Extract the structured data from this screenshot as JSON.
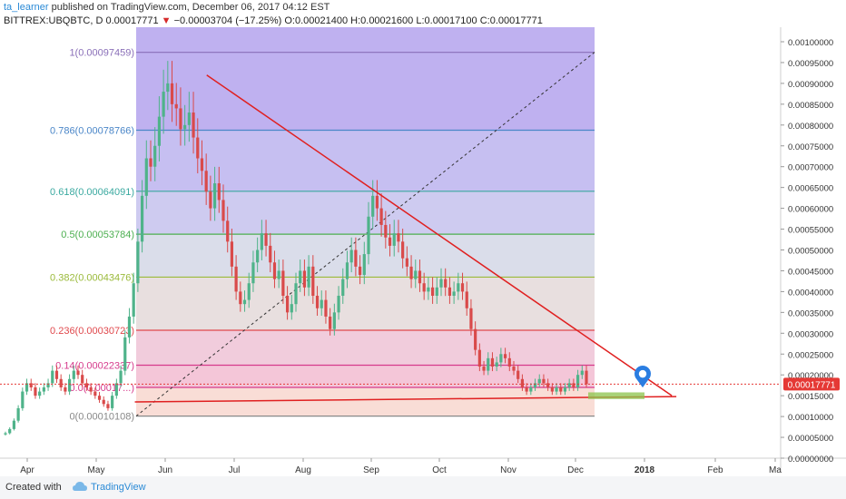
{
  "header": {
    "author": "ta_learner",
    "published_text": "published on TradingView.com, December 06, 2017 04:12 EST",
    "symbol": "BITTREX:UBQBTC, D",
    "last": "0.00017771",
    "arrow": "▼",
    "change": "−0.00003704 (−17.25%)",
    "o_label": "O:",
    "o_value": "0.00021400",
    "h_label": "H:",
    "h_value": "0.00021600",
    "l_label": "L:",
    "l_value": "0.00017100",
    "c_label": "C:",
    "c_value": "0.00017771"
  },
  "footer": {
    "created_with": "Created with",
    "brand": "TradingView"
  },
  "colors": {
    "up": "#4fb38a",
    "down": "#d94a4a",
    "trendline": "#e02020",
    "price_tag": "#e53935",
    "marker": "#2a7de1",
    "green_box": "#8bc34a"
  },
  "chart_data": {
    "type": "candlestick",
    "symbol": "BITTREX:UBQBTC",
    "interval": "D",
    "x_ticks": [
      "Apr",
      "May",
      "Jun",
      "Jul",
      "Aug",
      "Sep",
      "Oct",
      "Nov",
      "Dec",
      "2018",
      "Feb",
      "Ma"
    ],
    "y_ticks": [
      "0.00100000",
      "0.00095000",
      "0.00090000",
      "0.00085000",
      "0.00080000",
      "0.00075000",
      "0.00070000",
      "0.00065000",
      "0.00060000",
      "0.00055000",
      "0.00050000",
      "0.00045000",
      "0.00040000",
      "0.00035000",
      "0.00030000",
      "0.00025000",
      "0.00020000",
      "0.00015000",
      "0.00010000",
      "0.00005000",
      "0.00000000"
    ],
    "ylim": [
      0,
      0.00102
    ],
    "current_price_label": "0.00017771",
    "current_price": 0.00017771,
    "fibonacci": [
      {
        "label": "1(0.00097459)",
        "level": 1,
        "price": 0.00097459,
        "color": "#8a6fb8"
      },
      {
        "label": "0.786(0.00078766)",
        "level": 0.786,
        "price": 0.00078766,
        "color": "#4a86c8"
      },
      {
        "label": "0.618(0.00064091)",
        "level": 0.618,
        "price": 0.00064091,
        "color": "#3aa9a0"
      },
      {
        "label": "0.5(0.00053784)",
        "level": 0.5,
        "price": 0.00053784,
        "color": "#4caf50"
      },
      {
        "label": "0.382(0.00043476)",
        "level": 0.382,
        "price": 0.00043476,
        "color": "#9aba3a"
      },
      {
        "label": "0.236(0.00030723)",
        "level": 0.236,
        "price": 0.00030723,
        "color": "#e0484c"
      },
      {
        "label": "0.14(0.00022337)",
        "level": 0.14,
        "price": 0.00022337,
        "color": "#d63a8c"
      },
      {
        "label": "0.0(0.00017...)",
        "level": 0.08,
        "price": 0.00017,
        "color": "#d63a8c"
      },
      {
        "label": "0(0.00010108)",
        "level": 0,
        "price": 0.00010108,
        "color": "#888888"
      }
    ],
    "close_series": [
      6e-05,
      7e-05,
      9e-05,
      0.00012,
      0.00016,
      0.00018,
      0.00017,
      0.00015,
      0.00016,
      0.00017,
      0.00018,
      0.00021,
      0.00019,
      0.00017,
      0.00016,
      0.00019,
      0.00021,
      0.0002,
      0.00018,
      0.00017,
      0.00016,
      0.00015,
      0.00014,
      0.00013,
      0.00012,
      0.00015,
      0.00018,
      0.00021,
      0.00029,
      0.00034,
      0.00042,
      0.00052,
      0.00063,
      0.00072,
      0.0007,
      0.00075,
      0.00082,
      0.00088,
      0.0009,
      0.00085,
      0.00084,
      0.00079,
      0.0008,
      0.00083,
      0.00077,
      0.00072,
      0.00069,
      0.00064,
      0.0006,
      0.00066,
      0.00062,
      0.00057,
      0.00052,
      0.00046,
      0.0004,
      0.00037,
      0.00038,
      0.00042,
      0.00047,
      0.0005,
      0.00054,
      0.00051,
      0.00047,
      0.00043,
      0.00045,
      0.00039,
      0.00035,
      0.00037,
      0.00042,
      0.00045,
      0.00041,
      0.00046,
      0.00039,
      0.00036,
      0.00038,
      0.00034,
      0.00031,
      0.00035,
      0.00039,
      0.00043,
      0.00047,
      0.0005,
      0.00046,
      0.00044,
      0.00049,
      0.00058,
      0.00063,
      0.0006,
      0.00056,
      0.00053,
      0.00051,
      0.00054,
      0.00052,
      0.00048,
      0.00046,
      0.00043,
      0.00045,
      0.00042,
      0.0004,
      0.00041,
      0.00039,
      0.00041,
      0.00043,
      0.00041,
      0.00039,
      0.0004,
      0.00042,
      0.0004,
      0.00036,
      0.00031,
      0.00026,
      0.00022,
      0.00021,
      0.00024,
      0.00022,
      0.00023,
      0.00025,
      0.00024,
      0.00022,
      0.00021,
      0.00019,
      0.00017,
      0.00016,
      0.00017,
      0.00018,
      0.00019,
      0.00018,
      0.00017,
      0.00016,
      0.00017,
      0.00016,
      0.00017,
      0.00018,
      0.00017,
      0.0002,
      0.00021,
      0.00017771
    ],
    "trendlines": [
      {
        "name": "descending",
        "from": {
          "x": "2017-06-17",
          "y": 0.00092
        },
        "to": {
          "x": "2018-01-10",
          "y": 0.00015
        }
      },
      {
        "name": "support",
        "from": {
          "x": "2017-05-16",
          "y": 0.000135
        },
        "to": {
          "x": "2018-01-12",
          "y": 0.000148
        }
      }
    ]
  }
}
